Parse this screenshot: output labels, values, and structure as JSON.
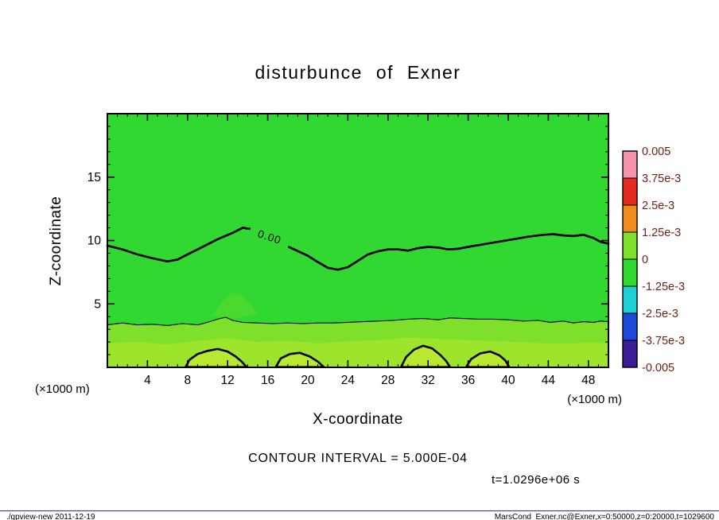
{
  "chart_data": {
    "type": "filled_contour",
    "title": "disturbunce of Exner",
    "xlabel": "X-coordinate",
    "ylabel": "Z-coordinate",
    "x_unit": "(×1000 m)",
    "y_unit": "(×1000 m)",
    "xlim": [
      0,
      50
    ],
    "ylim": [
      0,
      20
    ],
    "x_ticks": [
      4,
      8,
      12,
      16,
      20,
      24,
      28,
      32,
      36,
      40,
      44,
      48
    ],
    "y_ticks": [
      5,
      10,
      15
    ],
    "contour_interval_text": "CONTOUR INTERVAL = 5.000E-04",
    "time_text": "t=1.0296e+06 s",
    "zero_contour_label": "0.00",
    "colors": {
      "main": "#31d831",
      "band": "#7ee02a",
      "inner": "#9de42c",
      "blob": "#b9ea31",
      "patch": "#5fdc2d",
      "label_text": "#6e2317"
    },
    "colorbar": {
      "levels": [
        "0.005",
        "3.75e-3",
        "2.5e-3",
        "1.25e-3",
        "0",
        "-1.25e-3",
        "-2.5e-3",
        "-3.75e-3",
        "-0.005"
      ],
      "colors": [
        "#f394ab",
        "#e42b20",
        "#f08c1e",
        "#7ee02a",
        "#31d831",
        "#1ecfd4",
        "#1d49d8",
        "#3b1d96"
      ]
    },
    "zero_contour": [
      [
        0,
        9.6
      ],
      [
        1.5,
        9.3
      ],
      [
        3,
        8.9
      ],
      [
        4.5,
        8.6
      ],
      [
        6,
        8.35
      ],
      [
        7,
        8.5
      ],
      [
        8,
        8.9
      ],
      [
        9.5,
        9.5
      ],
      [
        11,
        10.1
      ],
      [
        12.5,
        10.6
      ],
      [
        13.5,
        11.0
      ],
      [
        14.3,
        10.9
      ],
      [
        15.5,
        10.45
      ],
      [
        17,
        9.9
      ],
      [
        18.5,
        9.35
      ],
      [
        20,
        8.8
      ],
      [
        21,
        8.3
      ],
      [
        22,
        7.85
      ],
      [
        23,
        7.7
      ],
      [
        24,
        7.9
      ],
      [
        25,
        8.4
      ],
      [
        26,
        8.9
      ],
      [
        27,
        9.15
      ],
      [
        28,
        9.3
      ],
      [
        29,
        9.3
      ],
      [
        30,
        9.2
      ],
      [
        31,
        9.4
      ],
      [
        32,
        9.5
      ],
      [
        33,
        9.45
      ],
      [
        34,
        9.3
      ],
      [
        35,
        9.35
      ],
      [
        36,
        9.5
      ],
      [
        37.5,
        9.7
      ],
      [
        39,
        9.9
      ],
      [
        40.5,
        10.1
      ],
      [
        42,
        10.3
      ],
      [
        43.5,
        10.45
      ],
      [
        44.5,
        10.5
      ],
      [
        45.5,
        10.4
      ],
      [
        46.5,
        10.35
      ],
      [
        47.5,
        10.45
      ],
      [
        48.5,
        10.2
      ],
      [
        49.2,
        9.9
      ],
      [
        50,
        9.75
      ]
    ],
    "thin_contour": [
      [
        0,
        3.35
      ],
      [
        1.5,
        3.5
      ],
      [
        3,
        3.35
      ],
      [
        4.5,
        3.4
      ],
      [
        6,
        3.3
      ],
      [
        7.5,
        3.45
      ],
      [
        9,
        3.35
      ],
      [
        10,
        3.55
      ],
      [
        11,
        3.8
      ],
      [
        11.8,
        3.95
      ],
      [
        12.5,
        3.7
      ],
      [
        13.5,
        3.55
      ],
      [
        15,
        3.5
      ],
      [
        16.5,
        3.45
      ],
      [
        18,
        3.5
      ],
      [
        19.5,
        3.45
      ],
      [
        21,
        3.5
      ],
      [
        22.5,
        3.5
      ],
      [
        24,
        3.55
      ],
      [
        25.5,
        3.6
      ],
      [
        27,
        3.65
      ],
      [
        28.5,
        3.7
      ],
      [
        30,
        3.8
      ],
      [
        31.5,
        3.85
      ],
      [
        33,
        3.75
      ],
      [
        34.2,
        3.9
      ],
      [
        35.5,
        3.85
      ],
      [
        37,
        3.8
      ],
      [
        38.5,
        3.8
      ],
      [
        40,
        3.75
      ],
      [
        41.5,
        3.65
      ],
      [
        43,
        3.7
      ],
      [
        44.2,
        3.55
      ],
      [
        45.5,
        3.65
      ],
      [
        46.5,
        3.5
      ],
      [
        47.5,
        3.6
      ],
      [
        48.5,
        3.55
      ],
      [
        49.2,
        3.65
      ],
      [
        50,
        3.6
      ]
    ],
    "inner_band": [
      [
        0,
        1.9
      ],
      [
        3,
        2.0
      ],
      [
        6,
        1.8
      ],
      [
        9,
        2.1
      ],
      [
        12,
        2.3
      ],
      [
        15,
        2.0
      ],
      [
        18,
        2.1
      ],
      [
        21,
        1.9
      ],
      [
        24,
        2.05
      ],
      [
        27,
        2.15
      ],
      [
        30,
        2.35
      ],
      [
        33,
        2.25
      ],
      [
        36,
        2.15
      ],
      [
        39,
        2.05
      ],
      [
        42,
        1.95
      ],
      [
        45,
        1.85
      ],
      [
        48,
        1.95
      ],
      [
        50,
        1.9
      ]
    ],
    "patch": [
      [
        10.5,
        4.1
      ],
      [
        11.5,
        5.2
      ],
      [
        12.5,
        5.9
      ],
      [
        13.5,
        5.6
      ],
      [
        14.5,
        4.8
      ],
      [
        15,
        4.2
      ],
      [
        13,
        3.9
      ],
      [
        11.5,
        3.95
      ]
    ],
    "blobs": [
      [
        [
          7.8,
          0.02
        ],
        [
          8.2,
          0.6
        ],
        [
          9,
          1.05
        ],
        [
          10,
          1.3
        ],
        [
          11,
          1.45
        ],
        [
          12,
          1.25
        ],
        [
          12.8,
          0.85
        ],
        [
          13.4,
          0.45
        ],
        [
          13.9,
          0.02
        ]
      ],
      [
        [
          16.8,
          0.02
        ],
        [
          17.3,
          0.7
        ],
        [
          18.2,
          1.05
        ],
        [
          19.2,
          1.15
        ],
        [
          20.2,
          0.85
        ],
        [
          21,
          0.45
        ],
        [
          21.6,
          0.02
        ]
      ],
      [
        [
          29.3,
          0.02
        ],
        [
          29.8,
          0.8
        ],
        [
          30.6,
          1.4
        ],
        [
          31.5,
          1.7
        ],
        [
          32.4,
          1.5
        ],
        [
          33.2,
          1.0
        ],
        [
          33.8,
          0.5
        ],
        [
          34.2,
          0.02
        ]
      ],
      [
        [
          35.8,
          0.02
        ],
        [
          36.3,
          0.65
        ],
        [
          37.2,
          1.1
        ],
        [
          38.2,
          1.25
        ],
        [
          39.1,
          0.95
        ],
        [
          39.7,
          0.55
        ],
        [
          40.1,
          0.02
        ]
      ]
    ]
  },
  "footer": {
    "left": "./gpview-new  2011-12-19",
    "right": "MarsCond_Exner.nc@Exner,x=0:50000,z=0:20000,t=1029600"
  }
}
